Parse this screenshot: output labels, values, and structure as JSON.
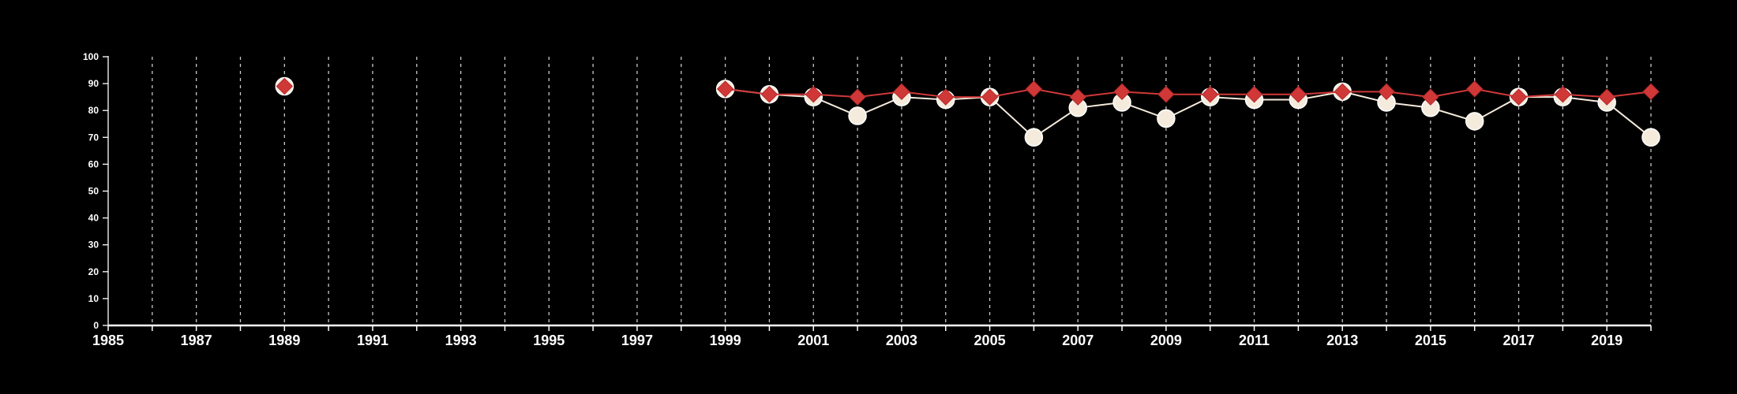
{
  "chart_data": {
    "type": "line",
    "title": "",
    "xlabel": "",
    "ylabel": "",
    "xlim": [
      1985,
      2020
    ],
    "ylim": [
      0,
      100
    ],
    "x_ticks": [
      1985,
      1987,
      1989,
      1991,
      1993,
      1995,
      1997,
      1999,
      2001,
      2003,
      2005,
      2007,
      2009,
      2011,
      2013,
      2015,
      2017,
      2019
    ],
    "y_ticks": [
      0,
      10,
      20,
      30,
      40,
      50,
      60,
      70,
      80,
      90,
      100
    ],
    "vertical_grid": true,
    "horizontal_grid": false,
    "legend": "none",
    "series": [
      {
        "marker": "circle",
        "color": "#f5ebdc",
        "points": [
          [
            1989,
            89
          ],
          [
            1999,
            88
          ],
          [
            2000,
            86
          ],
          [
            2001,
            85
          ],
          [
            2002,
            78
          ],
          [
            2003,
            85
          ],
          [
            2004,
            84
          ],
          [
            2005,
            85
          ],
          [
            2006,
            70
          ],
          [
            2007,
            81
          ],
          [
            2008,
            83
          ],
          [
            2009,
            77
          ],
          [
            2010,
            85
          ],
          [
            2011,
            84
          ],
          [
            2012,
            84
          ],
          [
            2013,
            87
          ],
          [
            2014,
            83
          ],
          [
            2015,
            81
          ],
          [
            2016,
            76
          ],
          [
            2017,
            85
          ],
          [
            2018,
            85
          ],
          [
            2019,
            83
          ],
          [
            2020,
            70
          ]
        ]
      },
      {
        "marker": "diamond",
        "color": "#d03838",
        "points": [
          [
            1989,
            89
          ],
          [
            1999,
            88
          ],
          [
            2000,
            86
          ],
          [
            2001,
            86
          ],
          [
            2002,
            85
          ],
          [
            2003,
            87
          ],
          [
            2004,
            85
          ],
          [
            2005,
            85
          ],
          [
            2006,
            88
          ],
          [
            2007,
            85
          ],
          [
            2008,
            87
          ],
          [
            2009,
            86
          ],
          [
            2010,
            86
          ],
          [
            2011,
            86
          ],
          [
            2012,
            86
          ],
          [
            2013,
            87
          ],
          [
            2014,
            87
          ],
          [
            2015,
            85
          ],
          [
            2016,
            88
          ],
          [
            2017,
            85
          ],
          [
            2018,
            86
          ],
          [
            2019,
            85
          ],
          [
            2020,
            87
          ]
        ]
      }
    ]
  }
}
